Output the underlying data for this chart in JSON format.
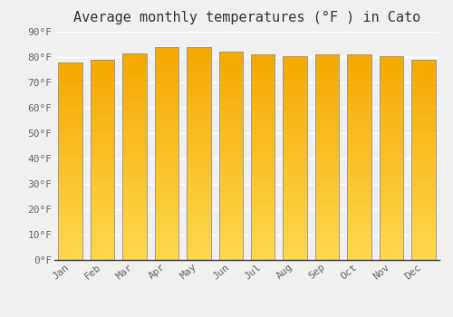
{
  "title": "Average monthly temperatures (°F ) in Cato",
  "months": [
    "Jan",
    "Feb",
    "Mar",
    "Apr",
    "May",
    "Jun",
    "Jul",
    "Aug",
    "Sep",
    "Oct",
    "Nov",
    "Dec"
  ],
  "values": [
    78,
    79,
    81.5,
    84,
    84,
    82,
    81,
    80.5,
    81,
    81,
    80.5,
    79
  ],
  "ylim": [
    0,
    90
  ],
  "yticks": [
    0,
    10,
    20,
    30,
    40,
    50,
    60,
    70,
    80,
    90
  ],
  "bar_color_top": "#F5A800",
  "bar_color_bottom": "#FFD84D",
  "bar_edge_color": "#999999",
  "background_color": "#f0f0f0",
  "grid_color": "#ffffff",
  "title_fontsize": 11,
  "tick_fontsize": 8,
  "font_family": "monospace"
}
